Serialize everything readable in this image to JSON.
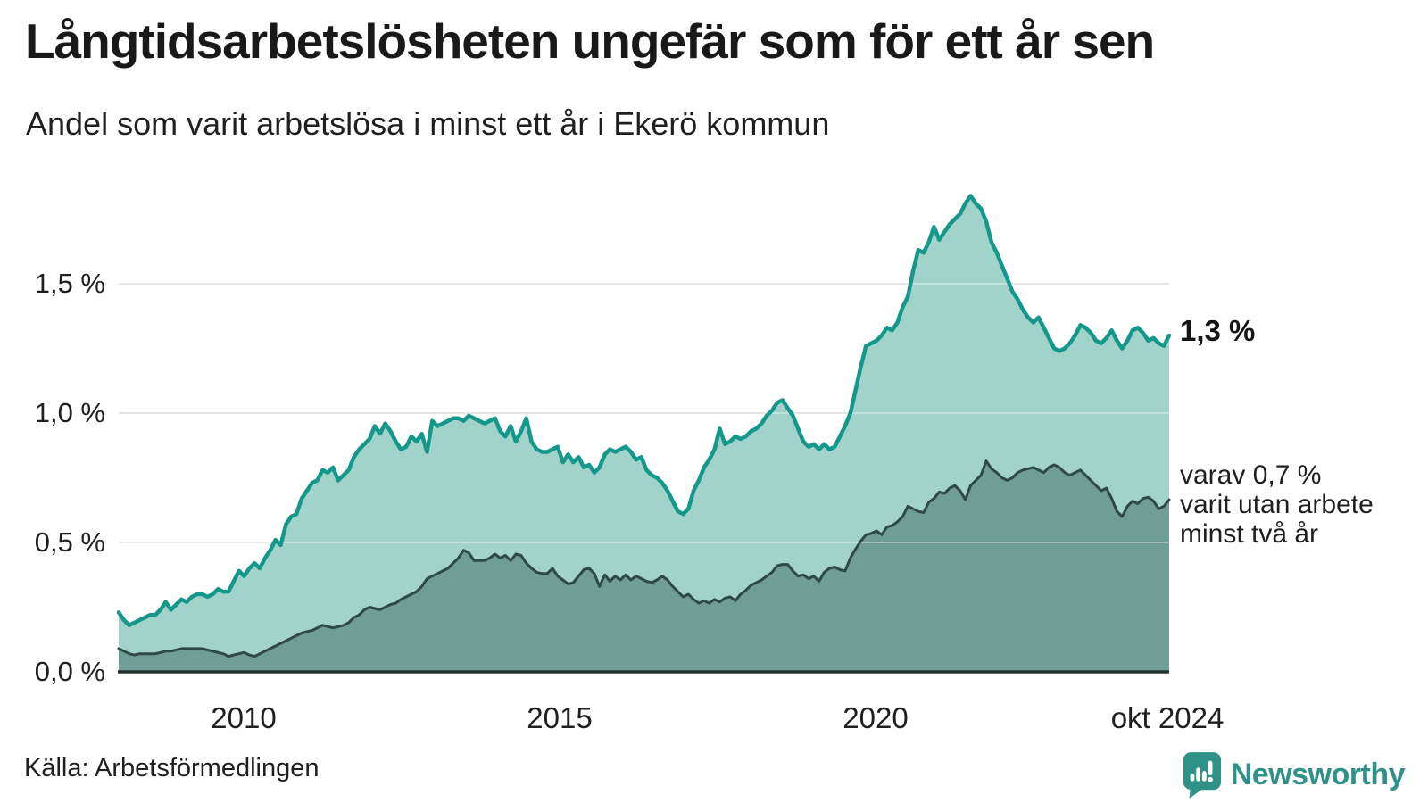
{
  "header": {
    "title": "Långtidsarbetslösheten ungefär som för ett år sen",
    "subtitle": "Andel som varit arbetslösa i minst ett år i Ekerö kommun"
  },
  "chart_data": {
    "type": "area",
    "title": "Långtidsarbetslösheten ungefär som för ett år sen",
    "subtitle": "Andel som varit arbetslösa i minst ett år i Ekerö kommun",
    "x_unit": "month",
    "x_range": [
      "jan 2008",
      "okt 2024"
    ],
    "ylim": [
      0,
      1.9
    ],
    "grid": "horizontal",
    "y_ticks": [
      {
        "label": "1,5 %",
        "value": 1.5
      },
      {
        "label": "1,0 %",
        "value": 1.0
      },
      {
        "label": "0,5 %",
        "value": 0.5
      },
      {
        "label": "0,0 %",
        "value": 0.0
      }
    ],
    "x_ticks": [
      {
        "label": "2010",
        "year": 2010
      },
      {
        "label": "2015",
        "year": 2015
      },
      {
        "label": "2020",
        "year": 2020
      },
      {
        "label": "okt 2024",
        "year": 2024.75
      }
    ],
    "colors": {
      "series1_line": "#14988b",
      "series1_fill": "#a1d3cb",
      "series2_line": "#2e4a45",
      "series2_fill": "#6f9e97",
      "gridline": "#d9d9d9",
      "baseline": "#22332f"
    },
    "series": [
      {
        "name": "Andel arbetslösa minst ett år",
        "end_value": 1.3,
        "values": [
          0.23,
          0.2,
          0.18,
          0.19,
          0.2,
          0.21,
          0.22,
          0.22,
          0.24,
          0.27,
          0.24,
          0.26,
          0.28,
          0.27,
          0.29,
          0.3,
          0.3,
          0.29,
          0.3,
          0.32,
          0.31,
          0.31,
          0.35,
          0.39,
          0.37,
          0.4,
          0.42,
          0.4,
          0.44,
          0.47,
          0.51,
          0.49,
          0.57,
          0.6,
          0.61,
          0.67,
          0.7,
          0.73,
          0.74,
          0.78,
          0.77,
          0.79,
          0.74,
          0.76,
          0.78,
          0.83,
          0.86,
          0.88,
          0.9,
          0.95,
          0.92,
          0.96,
          0.93,
          0.89,
          0.86,
          0.87,
          0.91,
          0.89,
          0.92,
          0.85,
          0.97,
          0.95,
          0.96,
          0.97,
          0.98,
          0.98,
          0.97,
          0.99,
          0.98,
          0.97,
          0.96,
          0.97,
          0.98,
          0.93,
          0.91,
          0.95,
          0.89,
          0.93,
          0.98,
          0.89,
          0.86,
          0.85,
          0.85,
          0.86,
          0.87,
          0.81,
          0.84,
          0.81,
          0.83,
          0.79,
          0.8,
          0.77,
          0.79,
          0.84,
          0.86,
          0.85,
          0.86,
          0.87,
          0.85,
          0.82,
          0.83,
          0.78,
          0.76,
          0.75,
          0.73,
          0.7,
          0.66,
          0.62,
          0.61,
          0.63,
          0.7,
          0.74,
          0.79,
          0.82,
          0.86,
          0.94,
          0.88,
          0.89,
          0.91,
          0.9,
          0.91,
          0.93,
          0.94,
          0.96,
          0.99,
          1.01,
          1.04,
          1.05,
          1.02,
          0.99,
          0.94,
          0.89,
          0.87,
          0.88,
          0.86,
          0.88,
          0.86,
          0.87,
          0.91,
          0.95,
          1.0,
          1.09,
          1.18,
          1.26,
          1.27,
          1.28,
          1.3,
          1.33,
          1.32,
          1.35,
          1.41,
          1.45,
          1.55,
          1.63,
          1.62,
          1.66,
          1.72,
          1.67,
          1.7,
          1.73,
          1.75,
          1.77,
          1.81,
          1.84,
          1.81,
          1.79,
          1.74,
          1.66,
          1.62,
          1.57,
          1.52,
          1.47,
          1.44,
          1.4,
          1.37,
          1.35,
          1.37,
          1.33,
          1.29,
          1.25,
          1.24,
          1.25,
          1.27,
          1.3,
          1.34,
          1.33,
          1.31,
          1.28,
          1.27,
          1.29,
          1.32,
          1.28,
          1.25,
          1.28,
          1.32,
          1.33,
          1.31,
          1.28,
          1.29,
          1.27,
          1.26,
          1.3
        ]
      },
      {
        "name": "varav arbetslösa minst två år",
        "end_value": 0.7,
        "values": [
          0.09,
          0.08,
          0.07,
          0.065,
          0.07,
          0.07,
          0.07,
          0.07,
          0.075,
          0.08,
          0.08,
          0.085,
          0.09,
          0.09,
          0.09,
          0.09,
          0.09,
          0.085,
          0.08,
          0.075,
          0.07,
          0.06,
          0.065,
          0.07,
          0.075,
          0.065,
          0.06,
          0.07,
          0.08,
          0.09,
          0.1,
          0.11,
          0.12,
          0.13,
          0.14,
          0.15,
          0.155,
          0.16,
          0.17,
          0.18,
          0.175,
          0.17,
          0.175,
          0.18,
          0.19,
          0.21,
          0.22,
          0.24,
          0.25,
          0.245,
          0.24,
          0.25,
          0.26,
          0.265,
          0.28,
          0.29,
          0.3,
          0.31,
          0.33,
          0.36,
          0.37,
          0.38,
          0.39,
          0.4,
          0.42,
          0.44,
          0.47,
          0.46,
          0.43,
          0.43,
          0.43,
          0.44,
          0.455,
          0.44,
          0.45,
          0.43,
          0.455,
          0.45,
          0.42,
          0.4,
          0.385,
          0.38,
          0.38,
          0.4,
          0.37,
          0.355,
          0.34,
          0.345,
          0.37,
          0.395,
          0.4,
          0.38,
          0.33,
          0.375,
          0.35,
          0.37,
          0.355,
          0.375,
          0.355,
          0.37,
          0.36,
          0.35,
          0.345,
          0.355,
          0.37,
          0.355,
          0.33,
          0.31,
          0.29,
          0.3,
          0.28,
          0.265,
          0.275,
          0.265,
          0.28,
          0.27,
          0.285,
          0.29,
          0.275,
          0.3,
          0.315,
          0.335,
          0.345,
          0.355,
          0.37,
          0.385,
          0.41,
          0.415,
          0.415,
          0.39,
          0.37,
          0.375,
          0.36,
          0.37,
          0.35,
          0.385,
          0.4,
          0.405,
          0.395,
          0.39,
          0.44,
          0.475,
          0.505,
          0.53,
          0.535,
          0.545,
          0.53,
          0.56,
          0.565,
          0.58,
          0.6,
          0.64,
          0.63,
          0.62,
          0.615,
          0.655,
          0.67,
          0.695,
          0.69,
          0.71,
          0.72,
          0.7,
          0.665,
          0.72,
          0.74,
          0.76,
          0.815,
          0.785,
          0.77,
          0.75,
          0.74,
          0.75,
          0.77,
          0.78,
          0.785,
          0.79,
          0.78,
          0.77,
          0.79,
          0.8,
          0.79,
          0.77,
          0.76,
          0.77,
          0.78,
          0.76,
          0.74,
          0.72,
          0.7,
          0.71,
          0.67,
          0.62,
          0.6,
          0.64,
          0.66,
          0.65,
          0.67,
          0.675,
          0.66,
          0.63,
          0.64,
          0.665
        ]
      }
    ],
    "annotations": {
      "end_label": "1,3 %",
      "secondary_label": "varav 0,7 %\nvarit utan arbete\nminst två år"
    }
  },
  "footer": {
    "source": "Källa: Arbetsförmedlingen",
    "logo_text": "Newsworthy",
    "logo_color": "#2f9187"
  }
}
